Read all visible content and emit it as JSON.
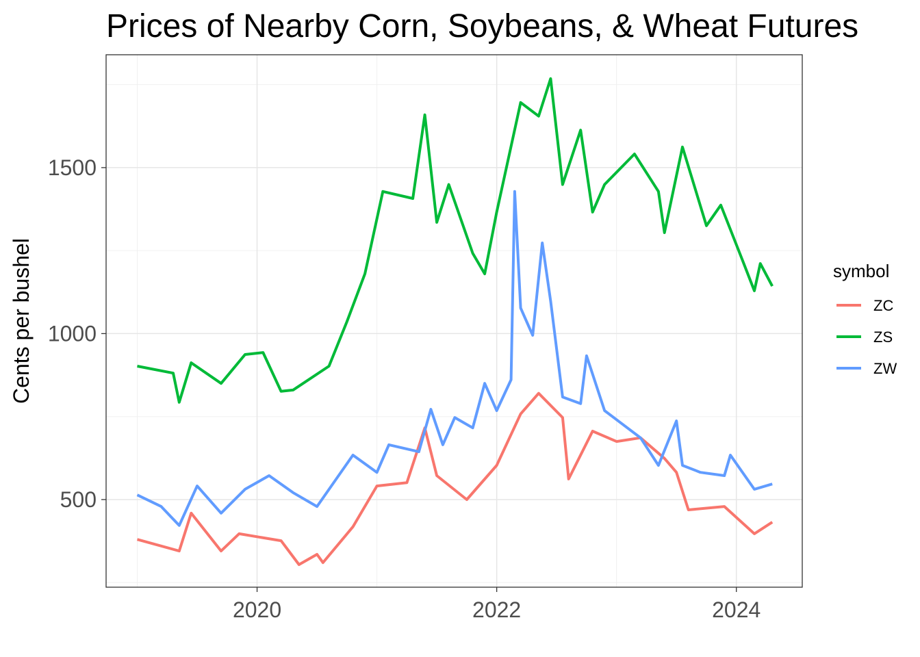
{
  "chart_data": {
    "type": "line",
    "title": "Prices of Nearby Corn, Soybeans, & Wheat Futures",
    "xlabel": "",
    "ylabel": "Cents per bushel",
    "xlim": [
      2018.74,
      2024.55
    ],
    "ylim": [
      236,
      1840
    ],
    "x_ticks": [
      2020,
      2022,
      2024
    ],
    "x_tick_labels": [
      "2020",
      "2022",
      "2024"
    ],
    "y_ticks": [
      500,
      1000,
      1500
    ],
    "y_tick_labels": [
      "500",
      "1000",
      "1500"
    ],
    "grid": true,
    "legend": {
      "title": "symbol",
      "placement": "right"
    },
    "series": [
      {
        "name": "ZC",
        "color": "#F8766D",
        "x": [
          2019.0,
          2019.35,
          2019.45,
          2019.7,
          2019.85,
          2020.2,
          2020.35,
          2020.5,
          2020.55,
          2020.8,
          2021.0,
          2021.25,
          2021.4,
          2021.5,
          2021.75,
          2022.0,
          2022.2,
          2022.35,
          2022.55,
          2022.6,
          2022.8,
          2023.0,
          2023.2,
          2023.4,
          2023.5,
          2023.6,
          2023.9,
          2024.15,
          2024.3
        ],
        "y": [
          380,
          345,
          459,
          345,
          397,
          376,
          304,
          335,
          310,
          418,
          541,
          551,
          716,
          572,
          500,
          603,
          758,
          820,
          747,
          562,
          706,
          675,
          686,
          624,
          582,
          469,
          479,
          397,
          432
        ]
      },
      {
        "name": "ZS",
        "color": "#00BA38",
        "x": [
          2019.0,
          2019.3,
          2019.35,
          2019.45,
          2019.7,
          2019.9,
          2020.05,
          2020.2,
          2020.3,
          2020.6,
          2020.75,
          2020.9,
          2021.05,
          2021.3,
          2021.4,
          2021.5,
          2021.6,
          2021.8,
          2021.9,
          2022.0,
          2022.2,
          2022.35,
          2022.45,
          2022.55,
          2022.7,
          2022.8,
          2022.9,
          2023.15,
          2023.35,
          2023.4,
          2023.55,
          2023.75,
          2023.87,
          2024.05,
          2024.15,
          2024.2,
          2024.3
        ],
        "y": [
          902,
          881,
          793,
          912,
          850,
          937,
          943,
          826,
          830,
          902,
          1036,
          1180,
          1428,
          1407,
          1659,
          1335,
          1449,
          1242,
          1180,
          1366,
          1696,
          1655,
          1768,
          1449,
          1613,
          1366,
          1449,
          1541,
          1428,
          1304,
          1562,
          1325,
          1387,
          1222,
          1129,
          1211,
          1143
        ]
      },
      {
        "name": "ZW",
        "color": "#619CFF",
        "x": [
          2019.0,
          2019.2,
          2019.35,
          2019.5,
          2019.7,
          2019.9,
          2020.1,
          2020.3,
          2020.5,
          2020.8,
          2021.0,
          2021.1,
          2021.35,
          2021.45,
          2021.55,
          2021.65,
          2021.8,
          2021.9,
          2022.0,
          2022.12,
          2022.15,
          2022.2,
          2022.3,
          2022.38,
          2022.45,
          2022.55,
          2022.7,
          2022.75,
          2022.9,
          2023.05,
          2023.2,
          2023.35,
          2023.5,
          2023.55,
          2023.7,
          2023.9,
          2023.95,
          2024.15,
          2024.3
        ],
        "y": [
          514,
          479,
          422,
          541,
          459,
          531,
          572,
          521,
          479,
          634,
          582,
          665,
          644,
          772,
          665,
          747,
          716,
          850,
          768,
          861,
          1428,
          1077,
          995,
          1273,
          1098,
          809,
          789,
          933,
          768,
          727,
          686,
          603,
          737,
          603,
          582,
          572,
          634,
          531,
          547
        ]
      }
    ]
  }
}
